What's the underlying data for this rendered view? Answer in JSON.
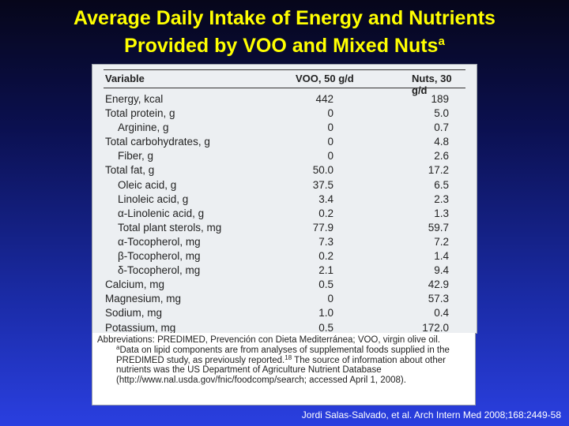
{
  "slide": {
    "title_line1": "Average Daily Intake of Energy and Nutrients",
    "title_line2": "Provided by VOO and Mixed Nuts",
    "title_sup": "a",
    "citation": "Jordi Salas-Salvado, et al. Arch Intern Med 2008;168:2449-58"
  },
  "table": {
    "headers": [
      "Variable",
      "VOO, 50 g/d",
      "Nuts, 30 g/d"
    ],
    "rows": [
      {
        "variable": "Energy, kcal",
        "voo": "442",
        "nuts": "189",
        "indent": false
      },
      {
        "variable": "Total protein, g",
        "voo": "0",
        "nuts": "5.0",
        "indent": false
      },
      {
        "variable": "Arginine, g",
        "voo": "0",
        "nuts": "0.7",
        "indent": true
      },
      {
        "variable": "Total carbohydrates, g",
        "voo": "0",
        "nuts": "4.8",
        "indent": false
      },
      {
        "variable": "Fiber, g",
        "voo": "0",
        "nuts": "2.6",
        "indent": true
      },
      {
        "variable": "Total fat, g",
        "voo": "50.0",
        "nuts": "17.2",
        "indent": false
      },
      {
        "variable": "Oleic acid, g",
        "voo": "37.5",
        "nuts": "6.5",
        "indent": true
      },
      {
        "variable": "Linoleic acid, g",
        "voo": "3.4",
        "nuts": "2.3",
        "indent": true
      },
      {
        "variable": "α-Linolenic acid, g",
        "voo": "0.2",
        "nuts": "1.3",
        "indent": true
      },
      {
        "variable": "Total plant sterols, mg",
        "voo": "77.9",
        "nuts": "59.7",
        "indent": true
      },
      {
        "variable": "α-Tocopherol, mg",
        "voo": "7.3",
        "nuts": "7.2",
        "indent": true
      },
      {
        "variable": "β-Tocopherol, mg",
        "voo": "0.2",
        "nuts": "1.4",
        "indent": true
      },
      {
        "variable": "δ-Tocopherol, mg",
        "voo": "2.1",
        "nuts": "9.4",
        "indent": true
      },
      {
        "variable": "Calcium, mg",
        "voo": "0.5",
        "nuts": "42.9",
        "indent": false
      },
      {
        "variable": "Magnesium, mg",
        "voo": "0",
        "nuts": "57.3",
        "indent": false
      },
      {
        "variable": "Sodium, mg",
        "voo": "1.0",
        "nuts": "0.4",
        "indent": false
      },
      {
        "variable": "Potassium, mg",
        "voo": "0.5",
        "nuts": "172.0",
        "indent": false
      }
    ]
  },
  "footnote": {
    "abbreviations": "Abbreviations: PREDIMED, Prevención con Dieta Mediterránea; VOO, virgin olive oil.",
    "note_marker": "a",
    "note_text": "Data on lipid components are from analyses of supplemental foods supplied in the PREDIMED study, as previously reported.",
    "note_ref": "18",
    "note_text2": "The source of information about other nutrients was the US Department of Agriculture Nutrient Database (http://www.nal.usda.gov/fnic/foodcomp/search; accessed April 1, 2008)."
  },
  "colors": {
    "title": "#ffff00",
    "background_top": "#06061a",
    "background_bottom": "#2a3fe0",
    "table_bg": "#eceff2"
  }
}
